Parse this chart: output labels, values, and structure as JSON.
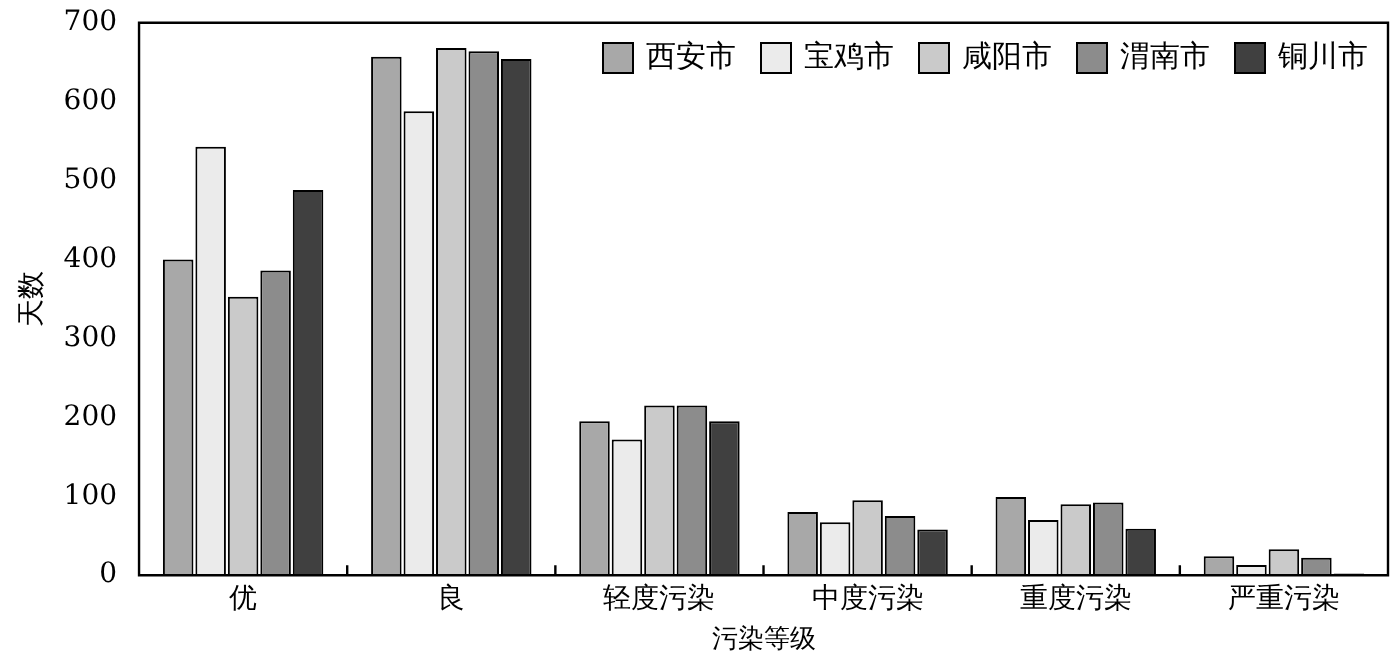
{
  "chart_data": {
    "type": "bar",
    "xlabel": "污染等级",
    "ylabel": "天数",
    "categories": [
      "优",
      "良",
      "轻度污染",
      "中度污染",
      "重度污染",
      "严重污染"
    ],
    "series": [
      {
        "name": "西安市",
        "color": "#a8a8a8",
        "values": [
          400,
          657,
          195,
          80,
          99,
          24
        ]
      },
      {
        "name": "宝鸡市",
        "color": "#ebebeb",
        "values": [
          543,
          588,
          172,
          67,
          70,
          13
        ]
      },
      {
        "name": "咸阳市",
        "color": "#cacaca",
        "values": [
          353,
          668,
          215,
          95,
          90,
          33
        ]
      },
      {
        "name": "渭南市",
        "color": "#8c8c8c",
        "values": [
          386,
          664,
          215,
          75,
          92,
          22
        ]
      },
      {
        "name": "铜川市",
        "color": "#404040",
        "values": [
          488,
          654,
          195,
          58,
          59,
          2
        ]
      }
    ],
    "ylim": [
      0,
      700
    ],
    "yticks": [
      0,
      100,
      200,
      300,
      400,
      500,
      600,
      700
    ],
    "grid": false,
    "legend": "top right"
  }
}
